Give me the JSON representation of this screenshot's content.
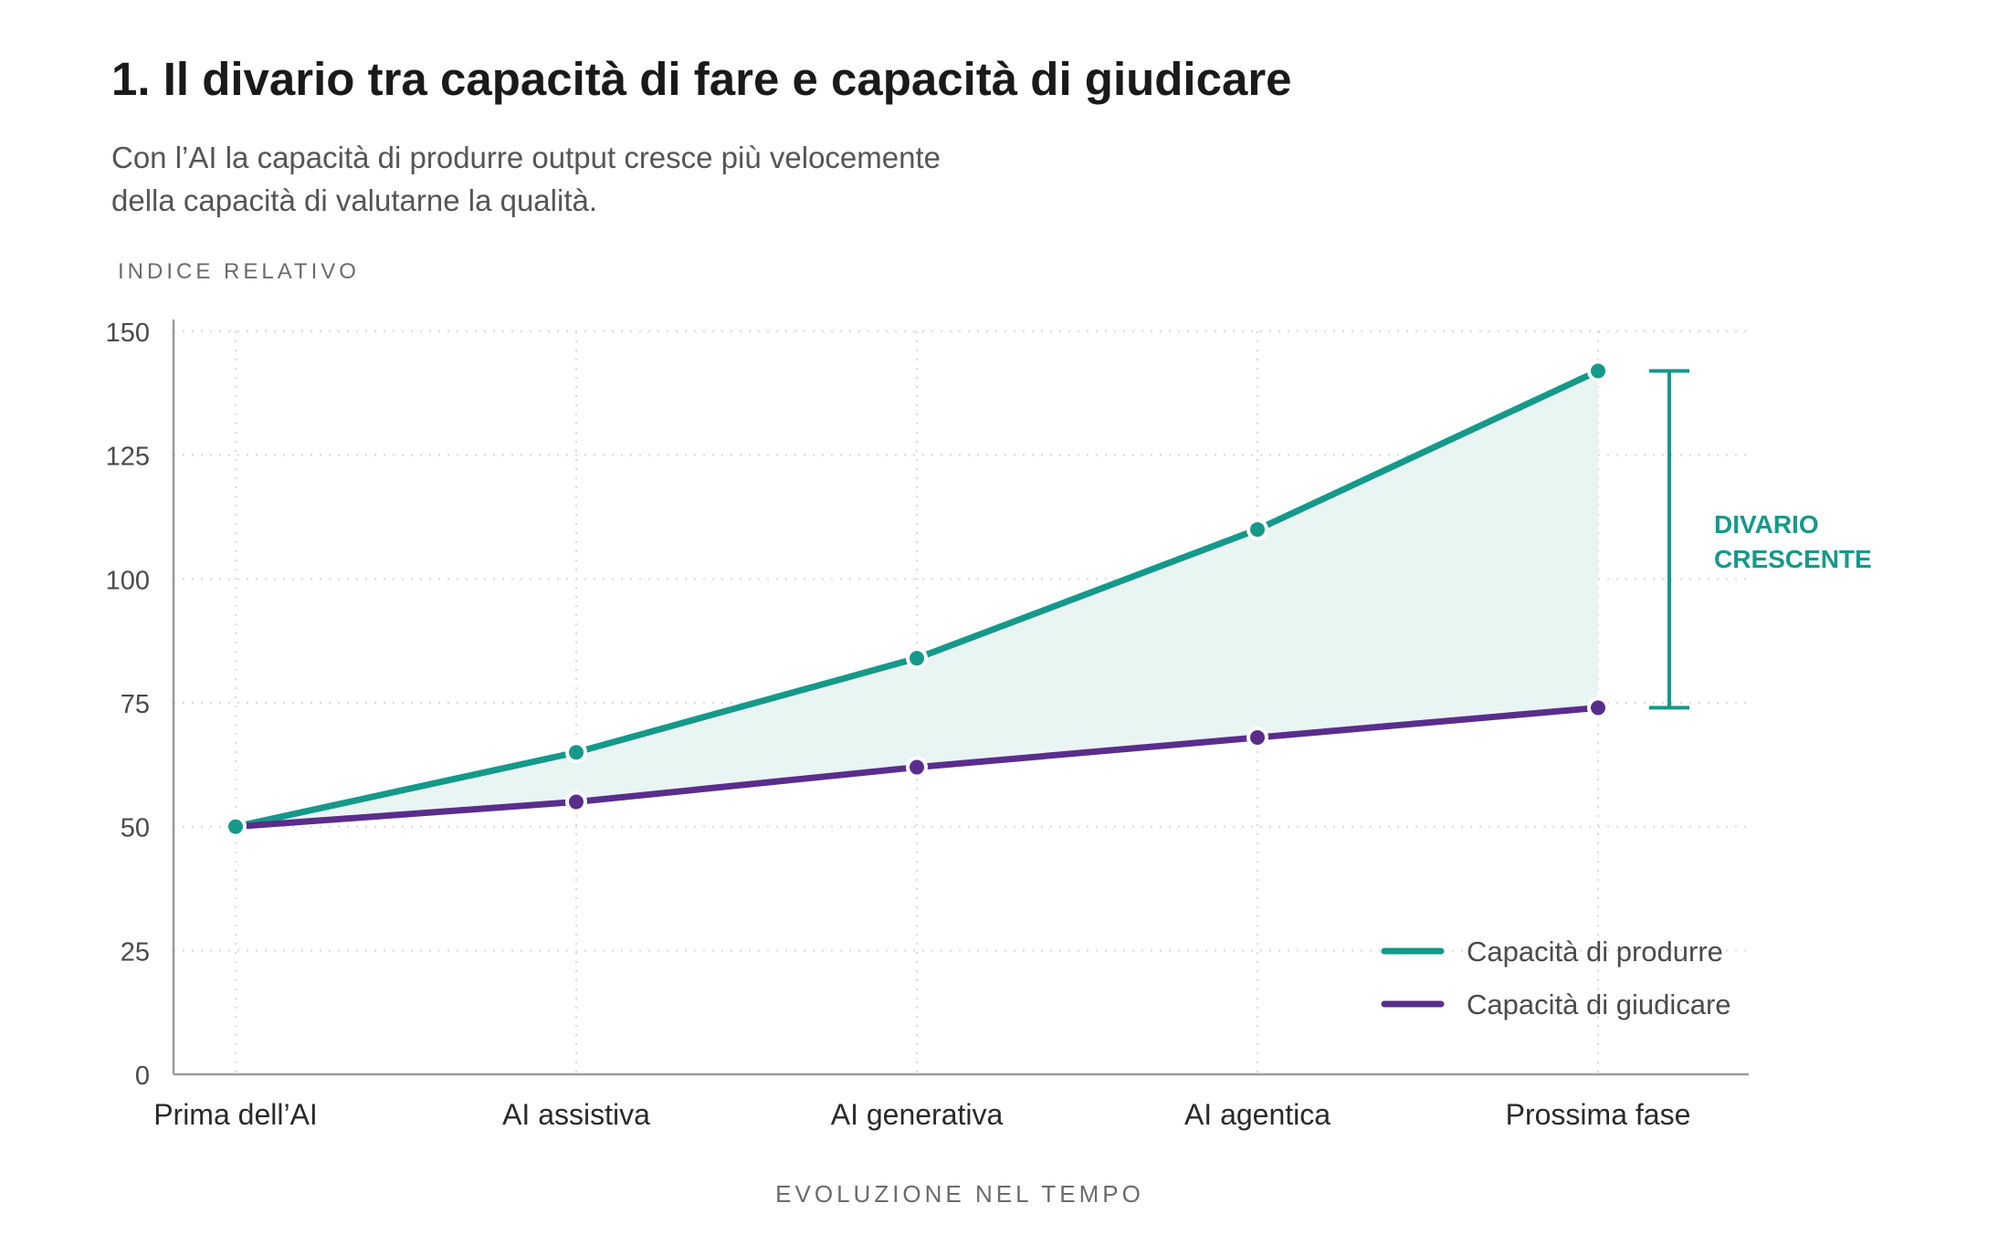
{
  "header": {
    "title": "1. Il divario tra capacità di fare e capacità di giudicare",
    "subtitle_line1": "Con l’AI la capacità di produrre output cresce più velocemente",
    "subtitle_line2": "della capacità di valutarne la qualità."
  },
  "colors": {
    "produrre": "#14998a",
    "giudicare": "#5a2d8c",
    "fill": "#e9f5f3",
    "grid": "#d9d9d9",
    "axis": "#9a9a9a"
  },
  "annotation": {
    "line1": "DIVARIO",
    "line2": "CRESCENTE"
  },
  "chart_data": {
    "type": "line",
    "ylabel": "INDICE RELATIVO",
    "xlabel": "EVOLUZIONE NEL TEMPO",
    "ylim": [
      0,
      150
    ],
    "yticks": [
      0,
      25,
      50,
      75,
      100,
      125,
      150
    ],
    "categories": [
      "Prima dell’AI",
      "AI assistiva",
      "AI generativa",
      "AI agentica",
      "Prossima fase"
    ],
    "series": [
      {
        "name": "Capacità di produrre",
        "values": [
          50,
          65,
          84,
          110,
          142
        ]
      },
      {
        "name": "Capacità di giudicare",
        "values": [
          50,
          55,
          62,
          68,
          74
        ]
      }
    ],
    "grid": true,
    "legend": "bottom-right",
    "shaded_gap": true
  }
}
